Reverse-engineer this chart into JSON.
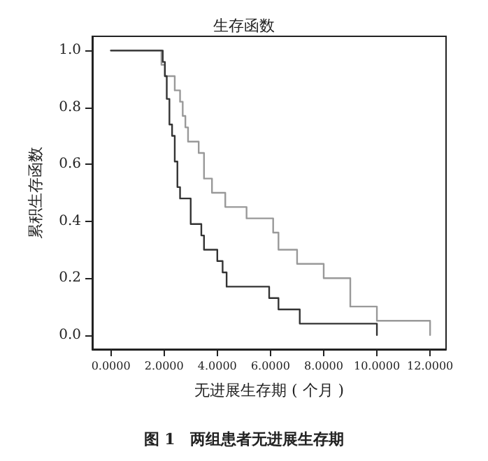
{
  "chart_data": {
    "type": "step",
    "title": "生存函数",
    "xlabel": "无进展生存期 ( 个月 )",
    "ylabel": "累积生存函数",
    "annotations": [
      "图 1　两组患者无进展生存期"
    ],
    "xlim": [
      -0.7,
      12.6
    ],
    "ylim": [
      -0.05,
      1.05
    ],
    "xticks": [
      {
        "value": 0,
        "label": "0.0000"
      },
      {
        "value": 2,
        "label": "2.0000"
      },
      {
        "value": 4,
        "label": "4.0000"
      },
      {
        "value": 6,
        "label": "6.0000"
      },
      {
        "value": 8,
        "label": "8.0000"
      },
      {
        "value": 10,
        "label": "10.0000"
      },
      {
        "value": 12,
        "label": "12.0000"
      }
    ],
    "yticks": [
      {
        "value": 0,
        "label": "0.0"
      },
      {
        "value": 0.2,
        "label": "0.2"
      },
      {
        "value": 0.4,
        "label": "0.4"
      },
      {
        "value": 0.6,
        "label": "0.6"
      },
      {
        "value": 0.8,
        "label": "0.8"
      },
      {
        "value": 1,
        "label": "1.0"
      }
    ],
    "grid": false,
    "marker": "none",
    "line_style": "solid",
    "series": [
      {
        "color": "#999999",
        "x": [
          0,
          1.9,
          2.03,
          2.4,
          2.6,
          2.7,
          2.8,
          2.9,
          3.3,
          3.5,
          3.8,
          4.3,
          5.1,
          6.1,
          6.3,
          7.0,
          8.0,
          9.0,
          10.0,
          12.0
        ],
        "values": [
          1.0,
          0.95,
          0.91,
          0.86,
          0.82,
          0.77,
          0.73,
          0.68,
          0.64,
          0.55,
          0.5,
          0.45,
          0.41,
          0.36,
          0.3,
          0.25,
          0.2,
          0.1,
          0.05,
          0.0
        ]
      },
      {
        "color": "#333333",
        "x": [
          0,
          1.95,
          2.03,
          2.1,
          2.2,
          2.3,
          2.4,
          2.5,
          2.6,
          3.0,
          3.4,
          3.5,
          4.0,
          4.2,
          4.35,
          5.95,
          6.3,
          7.1,
          10.0
        ],
        "values": [
          1.0,
          0.96,
          0.91,
          0.83,
          0.74,
          0.7,
          0.61,
          0.52,
          0.48,
          0.39,
          0.35,
          0.3,
          0.26,
          0.22,
          0.17,
          0.13,
          0.09,
          0.04,
          0.0
        ]
      }
    ]
  }
}
